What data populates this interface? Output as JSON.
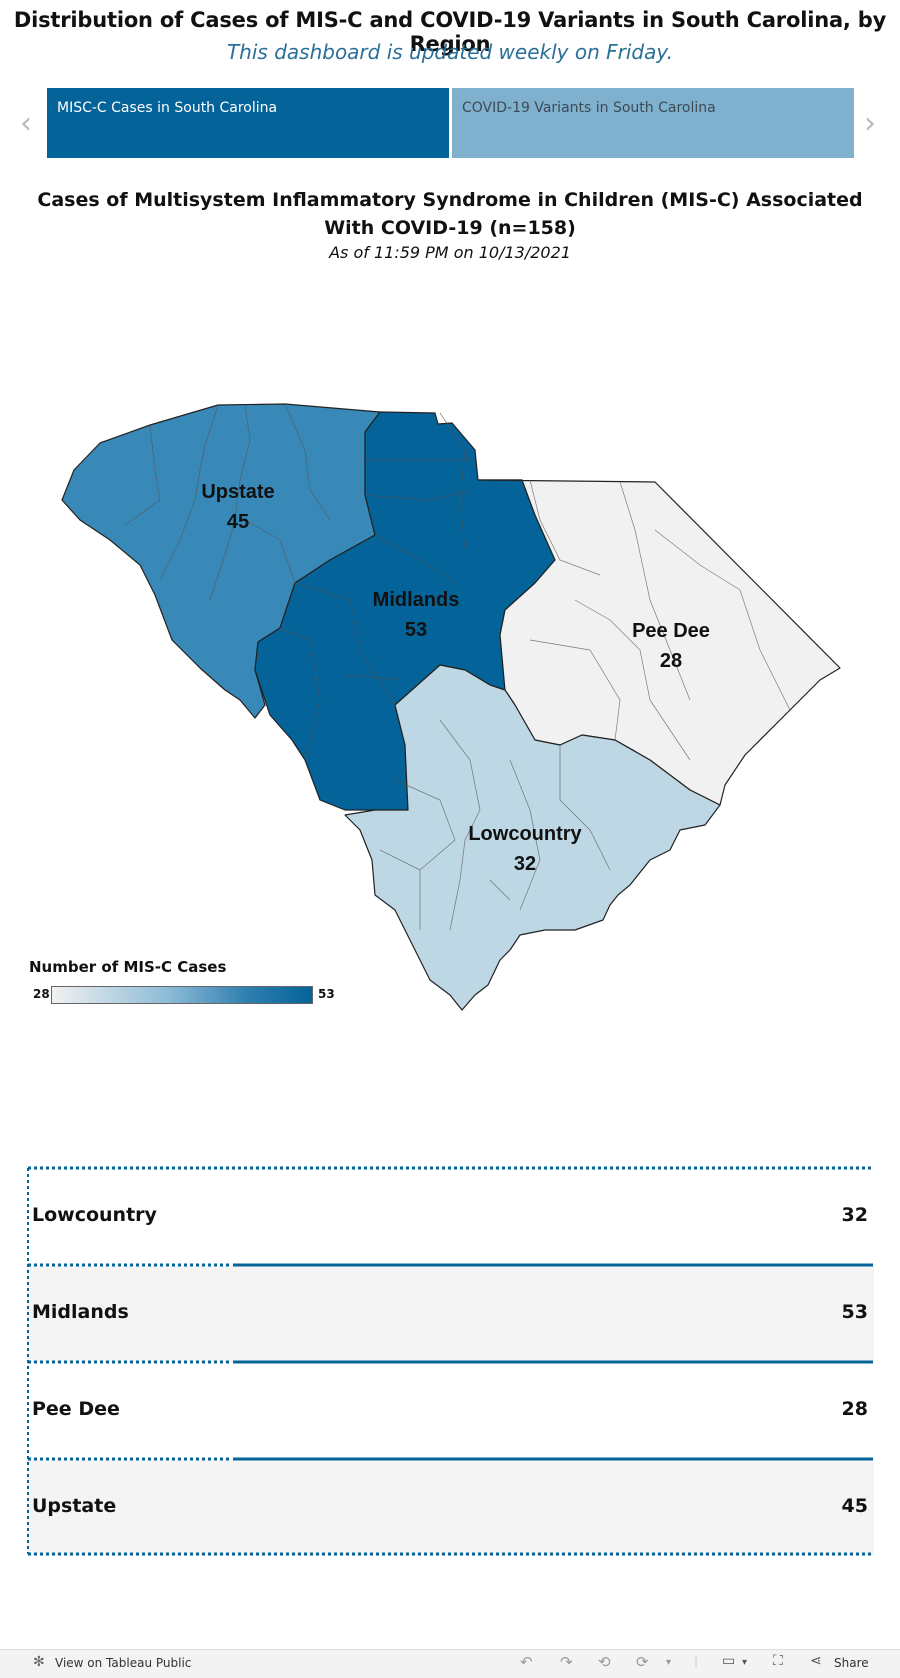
{
  "header": {
    "title": "Distribution of Cases of MIS-C and COVID-19 Variants in South Carolina, by Region",
    "subtitle": "This dashboard is updated weekly on Friday."
  },
  "tabs": [
    {
      "label": "MISC-C Cases in South Carolina",
      "active": true
    },
    {
      "label": "COVID-19 Variants in South Carolina",
      "active": false
    }
  ],
  "chart": {
    "title": "Cases of Multisystem Inflammatory Syndrome in Children (MIS-C) Associated With COVID-19 (n=158)",
    "as_of": "As of 11:59 PM on 10/13/2021"
  },
  "map_labels": {
    "upstate": {
      "name": "Upstate",
      "value": "45"
    },
    "midlands": {
      "name": "Midlands",
      "value": "53"
    },
    "peedee": {
      "name": "Pee Dee",
      "value": "28"
    },
    "lowcountry": {
      "name": "Lowcountry",
      "value": "32"
    }
  },
  "legend": {
    "title": "Number of MIS-C Cases",
    "min": "28",
    "max": "53"
  },
  "colors": {
    "midlands": "#046399",
    "upstate": "#3889b8",
    "lowcountry": "#bed7e4",
    "peedee": "#f1f1f1",
    "accent": "#046399",
    "tab_inactive": "#7fb1cf"
  },
  "table": {
    "rows": [
      {
        "region": "Lowcountry",
        "cases": "32"
      },
      {
        "region": "Midlands",
        "cases": "53"
      },
      {
        "region": "Pee Dee",
        "cases": "28"
      },
      {
        "region": "Upstate",
        "cases": "45"
      }
    ]
  },
  "footer": {
    "view_label": "View on Tableau Public",
    "share_label": "Share"
  },
  "icons": [
    "chevron-left-icon",
    "chevron-right-icon",
    "tableau-logo-icon",
    "undo-icon",
    "redo-icon",
    "revert-icon",
    "refresh-icon",
    "comment-icon",
    "fullscreen-icon",
    "share-icon"
  ]
}
